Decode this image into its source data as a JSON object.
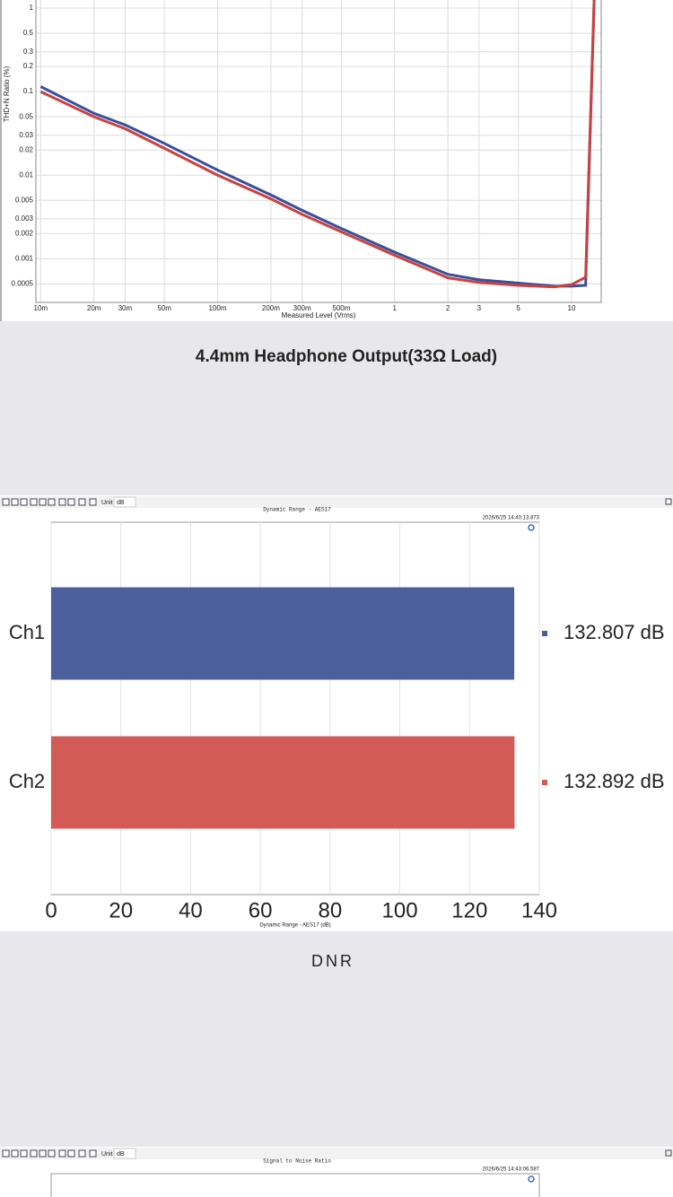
{
  "chart_data": [
    {
      "type": "line",
      "ylabel": "THD+N Ratio (%)",
      "xlabel": "Measured Level (Vrms)",
      "xscale": "log",
      "yscale": "log",
      "grid": true,
      "xlim": [
        0.0094,
        14.7
      ],
      "ylim": [
        0.0003,
        2
      ],
      "xticks": [
        {
          "value": 0.01,
          "label": "10m"
        },
        {
          "value": 0.02,
          "label": "20m"
        },
        {
          "value": 0.03,
          "label": "30m"
        },
        {
          "value": 0.05,
          "label": "50m"
        },
        {
          "value": 0.1,
          "label": "100m"
        },
        {
          "value": 0.2,
          "label": "200m"
        },
        {
          "value": 0.3,
          "label": "300m"
        },
        {
          "value": 0.5,
          "label": "500m"
        },
        1,
        2,
        3,
        5,
        10
      ],
      "yticks": [
        1,
        0.5,
        0.3,
        0.2,
        0.1,
        0.05,
        0.03,
        0.02,
        0.01,
        0.005,
        0.003,
        0.002,
        0.001,
        0.0005
      ],
      "x": [
        0.01,
        0.02,
        0.03,
        0.05,
        0.1,
        0.2,
        0.3,
        0.5,
        1,
        2,
        3,
        5,
        8,
        10,
        12,
        13.5
      ],
      "series": [
        {
          "name": "Ch1",
          "color": "#3a4f9a",
          "values": [
            0.115,
            0.055,
            0.04,
            0.024,
            0.0115,
            0.0058,
            0.0038,
            0.0023,
            0.0012,
            0.00065,
            0.00056,
            0.00051,
            0.00047,
            0.00047,
            0.00048,
            2
          ]
        },
        {
          "name": "Ch2",
          "color": "#c8423f",
          "values": [
            0.1,
            0.05,
            0.036,
            0.021,
            0.01,
            0.0052,
            0.0034,
            0.0021,
            0.0011,
            0.00059,
            0.00052,
            0.00048,
            0.00046,
            0.00049,
            0.0006,
            2
          ]
        }
      ]
    },
    {
      "type": "hbar",
      "toolbar": {
        "unit_label": "Unit",
        "unit": "dB"
      },
      "title": "Dynamic Range - AES17",
      "timestamp": "2026/6/25 14:40:13.873",
      "xlabel": "Dynamic Range - AES17 (dB)",
      "grid": true,
      "categories": [
        "Ch1",
        "Ch2"
      ],
      "values": [
        132.807,
        132.892
      ],
      "value_labels": [
        "132.807 dB",
        "132.892 dB"
      ],
      "colors": [
        "#4a5f9b",
        "#d25a57"
      ],
      "xlim": [
        0,
        140
      ],
      "xticks": [
        0,
        20,
        40,
        60,
        80,
        100,
        120,
        140
      ]
    },
    {
      "type": "hbar",
      "toolbar": {
        "unit_label": "Unit",
        "unit": "dB"
      },
      "title": "Signal to Noise Ratio",
      "timestamp": "2026/6/25 14:43:06.587"
    }
  ],
  "captions": [
    "4.4mm Headphone Output(33Ω Load)",
    "DNR"
  ]
}
